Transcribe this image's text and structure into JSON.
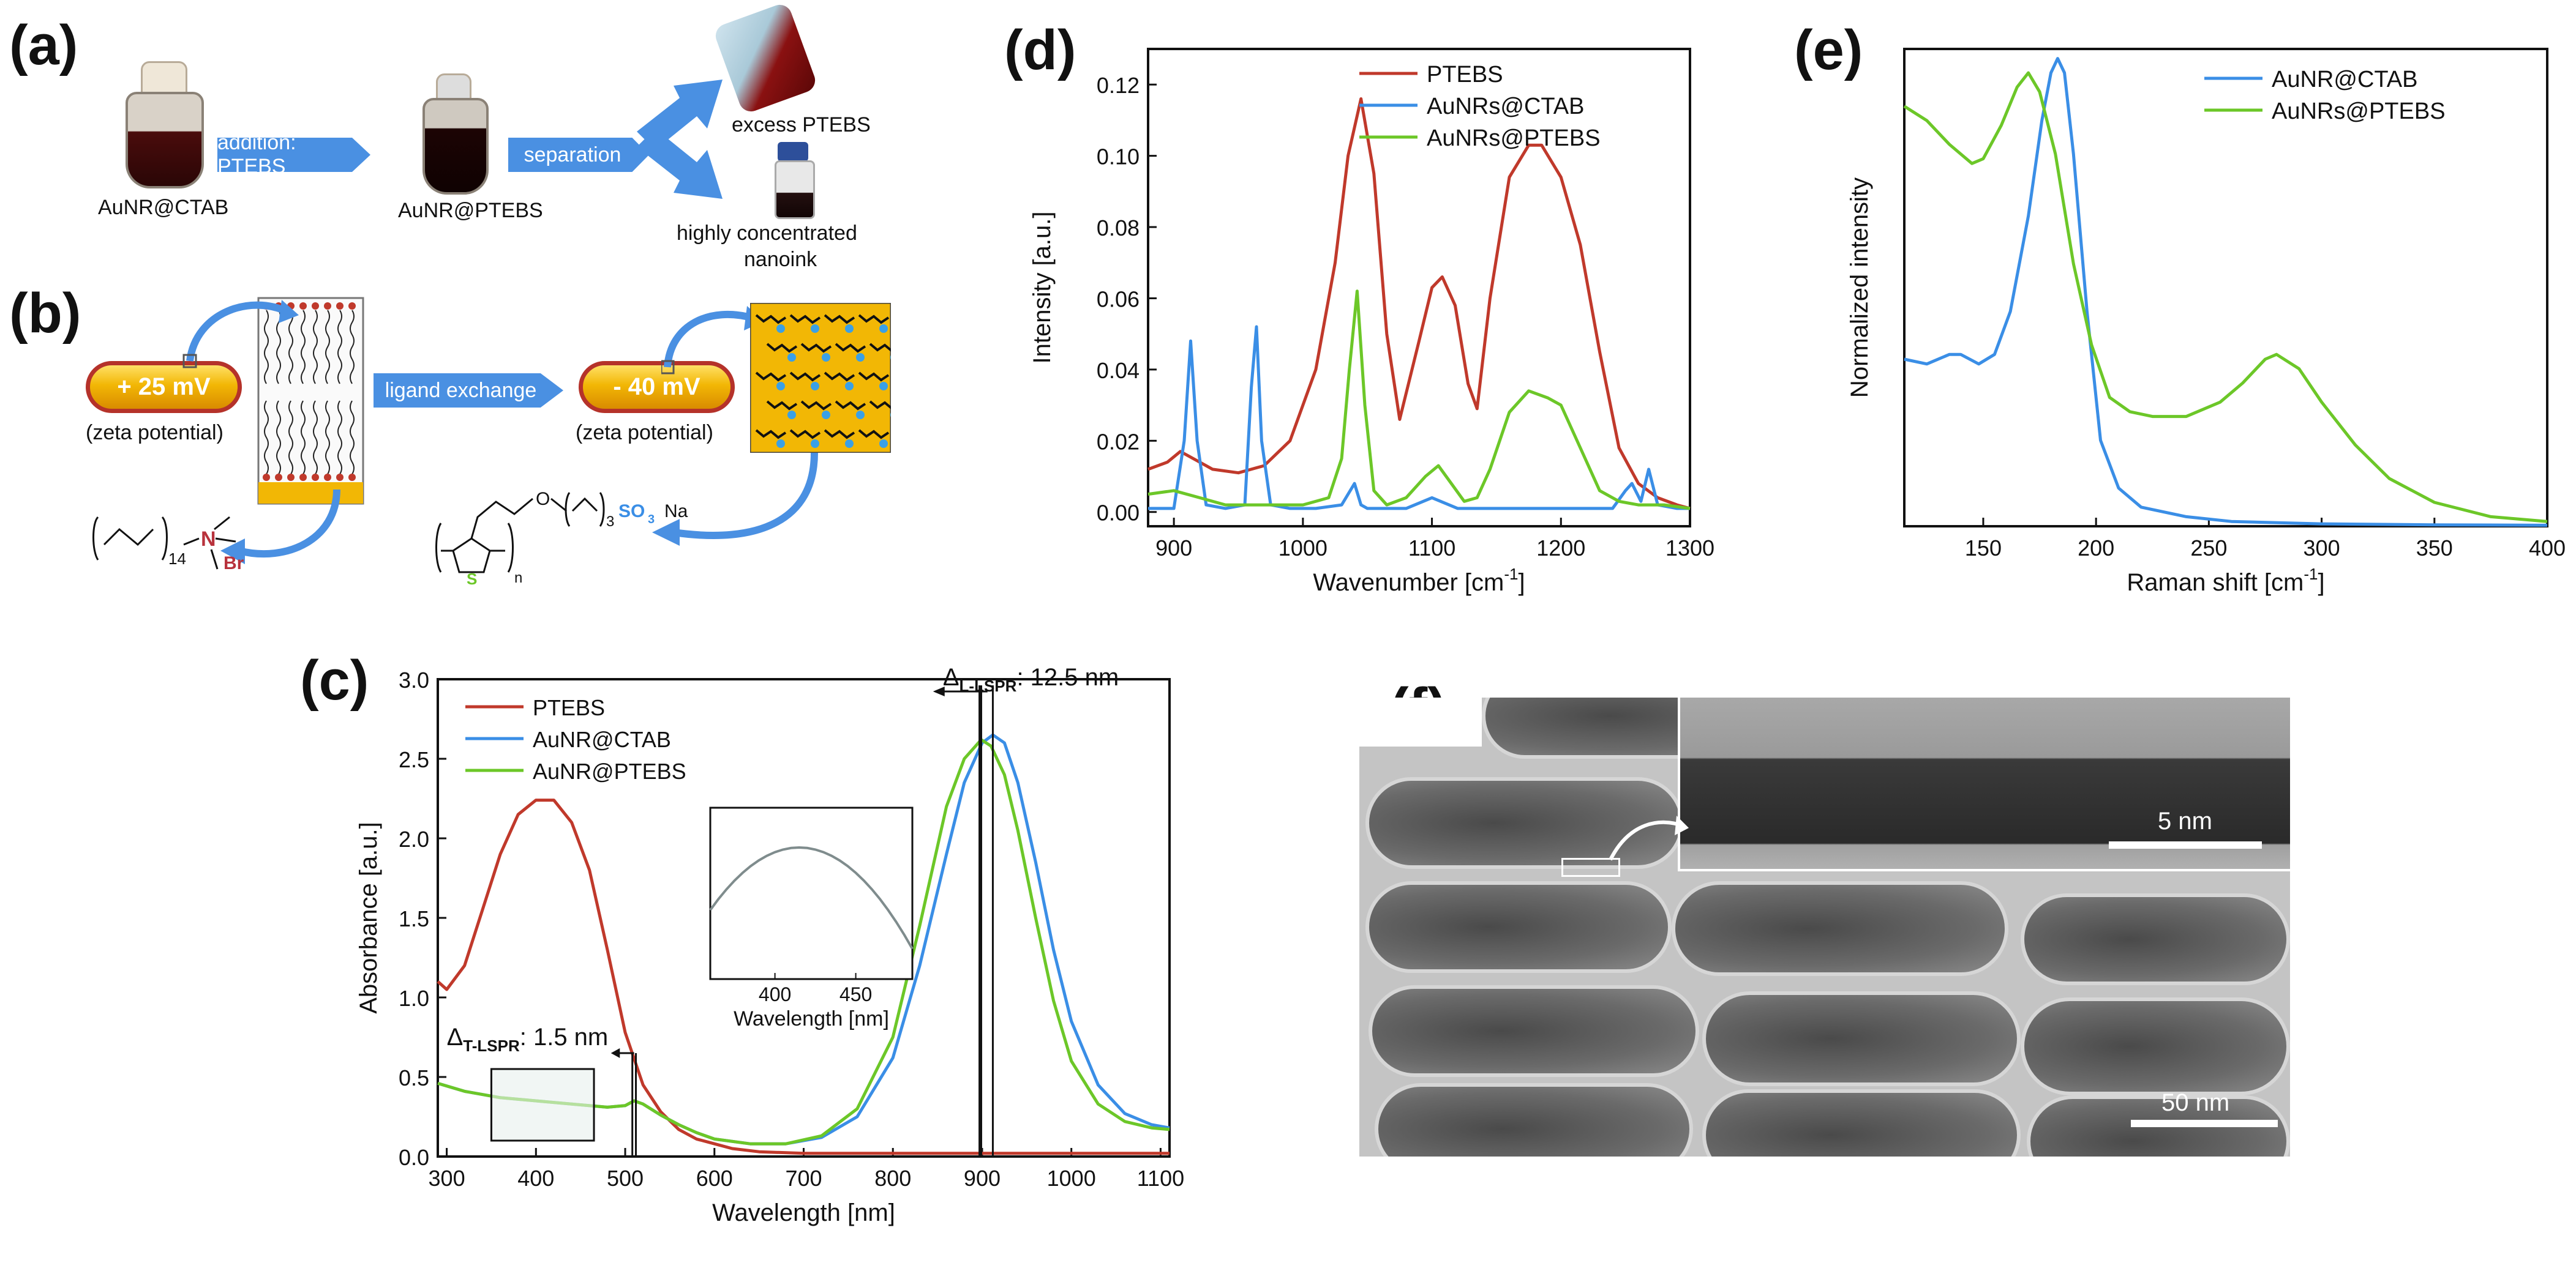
{
  "panels": {
    "a": {
      "label": "(a)",
      "flask1": "AuNR@CTAB",
      "step1": "addition: PTEBS",
      "flask2": "AuNR@PTEBS",
      "step2": "separation",
      "out1": "excess PTEBS",
      "out2a": "highly concentrated",
      "out2b": "nanoink"
    },
    "b": {
      "label": "(b)",
      "rod1_charge": "+ 25 mV",
      "rod1_caption": "(zeta potential)",
      "exchange": "ligand exchange",
      "rod2_charge": "- 40 mV",
      "rod2_caption": "(zeta potential)",
      "ctab_sub": "14",
      "ctab_n": "N",
      "ctab_br": "Br",
      "polymer_o": "O",
      "polymer_sub": "3",
      "polymer_so3": "SO",
      "polymer_so3_sub": "3",
      "polymer_na": "Na",
      "polymer_s": "S",
      "polymer_n": "n"
    },
    "c": {
      "label": "(c)"
    },
    "d": {
      "label": "(d)"
    },
    "e": {
      "label": "(e)"
    },
    "f": {
      "label": "(f)",
      "scale_inset": "5 nm",
      "scale_main": "50 nm"
    }
  },
  "colors": {
    "red": "#c0392b",
    "blue": "#3a8ee6",
    "green": "#6cc728",
    "pill": "#f2b705"
  },
  "chart_data": [
    {
      "id": "c",
      "type": "line",
      "xlabel": "Wavelength [nm]",
      "ylabel": "Absorbance [a.u.]",
      "xlim": [
        290,
        1110
      ],
      "ylim": [
        0,
        3.0
      ],
      "xticks": [
        300,
        400,
        500,
        600,
        700,
        800,
        900,
        1000,
        1100
      ],
      "yticks": [
        0.0,
        0.5,
        1.0,
        1.5,
        2.0,
        2.5,
        3.0
      ],
      "ytick_labels": [
        "0.0",
        "0.5",
        "1.0",
        "1.5",
        "2.0",
        "2.5",
        "3.0"
      ],
      "legend": [
        "PTEBS",
        "AuNR@CTAB",
        "AuNR@PTEBS"
      ],
      "annotation_long": "Δ",
      "annotation_long_sub": "L-LSPR",
      "annotation_long_value": ": 12.5 nm",
      "annotation_trans": "Δ",
      "annotation_trans_sub": "T-LSPR",
      "annotation_trans_value": ": 1.5 nm",
      "inset_xlabel": "Wavelength [nm]",
      "inset_xticks": [
        400,
        450
      ],
      "series": [
        {
          "name": "PTEBS",
          "color": "#c0392b",
          "x": [
            290,
            300,
            320,
            340,
            360,
            380,
            400,
            420,
            440,
            460,
            480,
            500,
            520,
            540,
            560,
            580,
            600,
            620,
            650,
            700,
            800,
            900,
            1000,
            1110
          ],
          "y": [
            1.1,
            1.05,
            1.2,
            1.55,
            1.9,
            2.15,
            2.24,
            2.24,
            2.1,
            1.8,
            1.3,
            0.78,
            0.45,
            0.28,
            0.17,
            0.11,
            0.08,
            0.05,
            0.03,
            0.02,
            0.02,
            0.02,
            0.02,
            0.02
          ]
        },
        {
          "name": "AuNR@CTAB",
          "color": "#3a8ee6",
          "x": [
            290,
            320,
            360,
            400,
            440,
            480,
            500,
            510,
            520,
            540,
            560,
            580,
            600,
            640,
            680,
            720,
            760,
            800,
            830,
            860,
            880,
            900,
            912,
            925,
            940,
            960,
            980,
            1000,
            1030,
            1060,
            1090,
            1110
          ],
          "y": [
            0.46,
            0.41,
            0.37,
            0.35,
            0.33,
            0.31,
            0.32,
            0.35,
            0.33,
            0.26,
            0.2,
            0.15,
            0.11,
            0.08,
            0.08,
            0.12,
            0.25,
            0.62,
            1.2,
            1.9,
            2.35,
            2.6,
            2.65,
            2.6,
            2.35,
            1.85,
            1.3,
            0.85,
            0.45,
            0.27,
            0.2,
            0.18
          ]
        },
        {
          "name": "AuNR@PTEBS",
          "color": "#6cc728",
          "x": [
            290,
            320,
            360,
            400,
            440,
            480,
            500,
            510,
            520,
            540,
            560,
            580,
            600,
            640,
            680,
            720,
            760,
            800,
            830,
            860,
            880,
            899,
            910,
            925,
            940,
            960,
            980,
            1000,
            1030,
            1060,
            1090,
            1110
          ],
          "y": [
            0.46,
            0.41,
            0.37,
            0.35,
            0.33,
            0.31,
            0.32,
            0.35,
            0.33,
            0.26,
            0.2,
            0.15,
            0.11,
            0.08,
            0.08,
            0.13,
            0.3,
            0.75,
            1.45,
            2.2,
            2.5,
            2.62,
            2.58,
            2.4,
            2.05,
            1.5,
            0.98,
            0.6,
            0.33,
            0.22,
            0.18,
            0.17
          ]
        }
      ]
    },
    {
      "id": "d",
      "type": "line",
      "xlabel": "Wavenumber [cm",
      "xlabel_sup": "-1",
      "xlabel_end": "]",
      "ylabel": "Intensity [a.u.]",
      "xlim": [
        880,
        1300
      ],
      "ylim": [
        -0.004,
        0.13
      ],
      "xticks": [
        900,
        1000,
        1100,
        1200,
        1300
      ],
      "yticks": [
        0.0,
        0.02,
        0.04,
        0.06,
        0.08,
        0.1,
        0.12
      ],
      "ytick_labels": [
        "0.00",
        "0.02",
        "0.04",
        "0.06",
        "0.08",
        "0.10",
        "0.12"
      ],
      "legend": [
        "PTEBS",
        "AuNRs@CTAB",
        "AuNRs@PTEBS"
      ],
      "series": [
        {
          "name": "PTEBS",
          "color": "#c0392b",
          "x": [
            880,
            895,
            905,
            915,
            930,
            950,
            970,
            990,
            1010,
            1025,
            1035,
            1045,
            1055,
            1065,
            1075,
            1090,
            1100,
            1108,
            1118,
            1128,
            1135,
            1145,
            1160,
            1175,
            1185,
            1200,
            1215,
            1230,
            1245,
            1260,
            1275,
            1290,
            1300
          ],
          "y": [
            0.012,
            0.014,
            0.017,
            0.015,
            0.012,
            0.011,
            0.013,
            0.02,
            0.04,
            0.07,
            0.1,
            0.116,
            0.095,
            0.05,
            0.026,
            0.048,
            0.063,
            0.066,
            0.058,
            0.036,
            0.029,
            0.06,
            0.094,
            0.103,
            0.103,
            0.094,
            0.075,
            0.045,
            0.018,
            0.008,
            0.004,
            0.002,
            0.001
          ]
        },
        {
          "name": "AuNRs@CTAB",
          "color": "#3a8ee6",
          "x": [
            880,
            900,
            908,
            913,
            918,
            925,
            940,
            955,
            960,
            964,
            968,
            975,
            990,
            1010,
            1030,
            1040,
            1045,
            1050,
            1060,
            1080,
            1100,
            1120,
            1140,
            1160,
            1180,
            1200,
            1220,
            1240,
            1250,
            1255,
            1262,
            1268,
            1275,
            1290,
            1300
          ],
          "y": [
            0.001,
            0.001,
            0.02,
            0.048,
            0.02,
            0.002,
            0.001,
            0.002,
            0.035,
            0.052,
            0.02,
            0.002,
            0.001,
            0.001,
            0.002,
            0.008,
            0.002,
            0.001,
            0.001,
            0.001,
            0.004,
            0.001,
            0.001,
            0.001,
            0.001,
            0.001,
            0.001,
            0.001,
            0.006,
            0.008,
            0.003,
            0.012,
            0.002,
            0.001,
            0.001
          ]
        },
        {
          "name": "AuNRs@PTEBS",
          "color": "#6cc728",
          "x": [
            880,
            900,
            920,
            940,
            960,
            980,
            1000,
            1020,
            1030,
            1036,
            1042,
            1048,
            1055,
            1065,
            1080,
            1095,
            1105,
            1115,
            1125,
            1135,
            1145,
            1160,
            1175,
            1190,
            1200,
            1215,
            1230,
            1245,
            1260,
            1280,
            1300
          ],
          "y": [
            0.005,
            0.006,
            0.004,
            0.002,
            0.002,
            0.002,
            0.002,
            0.004,
            0.015,
            0.04,
            0.062,
            0.03,
            0.006,
            0.002,
            0.004,
            0.01,
            0.013,
            0.008,
            0.003,
            0.004,
            0.012,
            0.028,
            0.034,
            0.032,
            0.03,
            0.018,
            0.006,
            0.003,
            0.002,
            0.002,
            0.001
          ]
        }
      ]
    },
    {
      "id": "e",
      "type": "line",
      "xlabel": "Raman shift [cm",
      "xlabel_sup": "-1",
      "xlabel_end": "]",
      "ylabel": "Normalized intensity",
      "xlim": [
        115,
        400
      ],
      "ylim": [
        0,
        1.0
      ],
      "xticks": [
        150,
        200,
        250,
        300,
        350,
        400
      ],
      "yticks": [],
      "legend": [
        "AuNR@CTAB",
        "AuNRs@PTEBS"
      ],
      "series": [
        {
          "name": "AuNR@CTAB",
          "color": "#3a8ee6",
          "x": [
            115,
            125,
            135,
            140,
            148,
            155,
            162,
            170,
            176,
            180,
            183,
            186,
            190,
            196,
            202,
            210,
            220,
            240,
            260,
            300,
            350,
            400
          ],
          "y": [
            0.35,
            0.34,
            0.36,
            0.36,
            0.34,
            0.36,
            0.45,
            0.65,
            0.85,
            0.95,
            0.98,
            0.95,
            0.78,
            0.45,
            0.18,
            0.08,
            0.04,
            0.02,
            0.01,
            0.005,
            0.003,
            0.002
          ]
        },
        {
          "name": "AuNRs@PTEBS",
          "color": "#6cc728",
          "x": [
            115,
            125,
            135,
            145,
            150,
            158,
            165,
            170,
            175,
            182,
            190,
            198,
            206,
            215,
            225,
            240,
            255,
            265,
            275,
            280,
            290,
            300,
            315,
            330,
            350,
            375,
            400
          ],
          "y": [
            0.88,
            0.85,
            0.8,
            0.76,
            0.77,
            0.84,
            0.92,
            0.95,
            0.91,
            0.78,
            0.55,
            0.38,
            0.27,
            0.24,
            0.23,
            0.23,
            0.26,
            0.3,
            0.35,
            0.36,
            0.33,
            0.26,
            0.17,
            0.1,
            0.05,
            0.02,
            0.01
          ]
        }
      ]
    }
  ]
}
